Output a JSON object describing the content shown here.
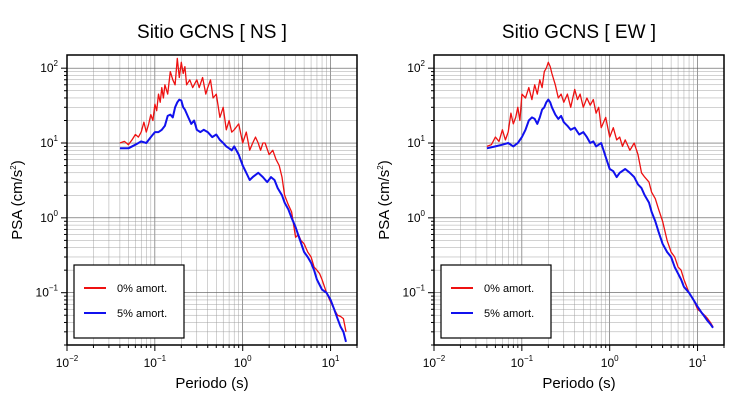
{
  "chart_data": [
    {
      "type": "line",
      "title": "Sitio GCNS [ NS ]",
      "xlabel": "Periodo (s)",
      "ylabel_main": "PSA (cm/s",
      "ylabel_sup": "2",
      "ylabel_close": ")",
      "xscale": "log",
      "yscale": "log",
      "xlim": [
        0.01,
        20
      ],
      "ylim": [
        0.02,
        150
      ],
      "xticks": [
        {
          "value": 0.01,
          "base": "10",
          "exp": "−2"
        },
        {
          "value": 0.1,
          "base": "10",
          "exp": "−1"
        },
        {
          "value": 1,
          "base": "10",
          "exp": "0"
        },
        {
          "value": 10,
          "base": "10",
          "exp": "1"
        }
      ],
      "yticks": [
        {
          "value": 0.1,
          "base": "10",
          "exp": "−1"
        },
        {
          "value": 1,
          "base": "10",
          "exp": "0"
        },
        {
          "value": 10,
          "base": "10",
          "exp": "1"
        },
        {
          "value": 100,
          "base": "10",
          "exp": "2"
        }
      ],
      "grid": true,
      "legend_position": "bottom-left",
      "series": [
        {
          "name": "0% amort.",
          "color": "#ee1111",
          "x": [
            0.04,
            0.045,
            0.05,
            0.055,
            0.06,
            0.065,
            0.07,
            0.075,
            0.08,
            0.085,
            0.09,
            0.095,
            0.1,
            0.105,
            0.11,
            0.115,
            0.12,
            0.125,
            0.13,
            0.14,
            0.15,
            0.16,
            0.17,
            0.18,
            0.19,
            0.2,
            0.21,
            0.22,
            0.23,
            0.25,
            0.27,
            0.3,
            0.32,
            0.35,
            0.38,
            0.4,
            0.43,
            0.46,
            0.5,
            0.55,
            0.6,
            0.65,
            0.7,
            0.75,
            0.8,
            0.9,
            1.0,
            1.1,
            1.2,
            1.3,
            1.4,
            1.5,
            1.6,
            1.7,
            1.8,
            2.0,
            2.2,
            2.4,
            2.6,
            2.8,
            3.0,
            3.3,
            3.6,
            4.0,
            4.3,
            4.6,
            5.0,
            5.5,
            6.0,
            6.5,
            7.0,
            7.5,
            8.0,
            9.0,
            10.0,
            11.0,
            12.0,
            13.0,
            14.0,
            15.0
          ],
          "y": [
            10,
            10.5,
            9.5,
            11,
            13,
            12,
            14,
            19,
            14,
            18,
            24,
            20,
            33,
            27,
            45,
            35,
            55,
            40,
            60,
            45,
            90,
            70,
            60,
            135,
            75,
            120,
            85,
            105,
            60,
            70,
            55,
            70,
            55,
            75,
            45,
            55,
            70,
            40,
            45,
            22,
            30,
            15,
            20,
            14,
            15,
            18,
            10,
            14,
            8,
            10,
            12,
            10,
            8,
            10,
            10,
            7,
            8,
            6,
            5,
            3.5,
            2.0,
            1.5,
            1.2,
            0.55,
            0.6,
            0.5,
            0.45,
            0.35,
            0.3,
            0.22,
            0.2,
            0.18,
            0.15,
            0.1,
            0.075,
            0.06,
            0.05,
            0.048,
            0.045,
            0.03
          ]
        },
        {
          "name": "5% amort.",
          "color": "#1111ee",
          "x": [
            0.04,
            0.05,
            0.06,
            0.07,
            0.08,
            0.09,
            0.1,
            0.11,
            0.12,
            0.13,
            0.14,
            0.15,
            0.16,
            0.17,
            0.18,
            0.19,
            0.2,
            0.21,
            0.22,
            0.24,
            0.26,
            0.28,
            0.3,
            0.33,
            0.36,
            0.4,
            0.45,
            0.5,
            0.55,
            0.6,
            0.65,
            0.7,
            0.75,
            0.8,
            0.9,
            1.0,
            1.1,
            1.2,
            1.3,
            1.5,
            1.7,
            1.9,
            2.1,
            2.3,
            2.5,
            2.8,
            3.0,
            3.3,
            3.6,
            4.0,
            4.5,
            5.0,
            5.5,
            6.0,
            6.5,
            7.0,
            8.0,
            9.0,
            10.0,
            11.0,
            12.0,
            13.0,
            14.0,
            15.0
          ],
          "y": [
            8.5,
            8.5,
            9.5,
            10.5,
            10,
            12,
            14,
            14,
            15,
            17,
            23,
            24,
            22,
            30,
            35,
            38,
            37,
            30,
            28,
            22,
            18,
            20,
            15,
            14,
            15,
            14,
            12,
            13,
            11,
            10,
            9,
            8.5,
            8,
            9,
            7,
            5,
            4.0,
            3.2,
            3.5,
            4.0,
            3.5,
            3.0,
            3.5,
            3.2,
            2.5,
            2.0,
            1.6,
            1.3,
            1.0,
            0.75,
            0.5,
            0.35,
            0.3,
            0.25,
            0.2,
            0.15,
            0.11,
            0.1,
            0.08,
            0.06,
            0.045,
            0.035,
            0.03,
            0.022
          ]
        }
      ]
    },
    {
      "type": "line",
      "title": "Sitio GCNS [ EW ]",
      "xlabel": "Periodo (s)",
      "ylabel_main": "PSA (cm/s",
      "ylabel_sup": "2",
      "ylabel_close": ")",
      "xscale": "log",
      "yscale": "log",
      "xlim": [
        0.01,
        20
      ],
      "ylim": [
        0.02,
        150
      ],
      "xticks": [
        {
          "value": 0.01,
          "base": "10",
          "exp": "−2"
        },
        {
          "value": 0.1,
          "base": "10",
          "exp": "−1"
        },
        {
          "value": 1,
          "base": "10",
          "exp": "0"
        },
        {
          "value": 10,
          "base": "10",
          "exp": "1"
        }
      ],
      "yticks": [
        {
          "value": 0.1,
          "base": "10",
          "exp": "−1"
        },
        {
          "value": 1,
          "base": "10",
          "exp": "0"
        },
        {
          "value": 10,
          "base": "10",
          "exp": "1"
        },
        {
          "value": 100,
          "base": "10",
          "exp": "2"
        }
      ],
      "grid": true,
      "legend_position": "bottom-left",
      "series": [
        {
          "name": "0% amort.",
          "color": "#ee1111",
          "x": [
            0.04,
            0.045,
            0.05,
            0.055,
            0.06,
            0.065,
            0.07,
            0.075,
            0.08,
            0.085,
            0.09,
            0.095,
            0.1,
            0.11,
            0.12,
            0.13,
            0.14,
            0.15,
            0.16,
            0.17,
            0.18,
            0.19,
            0.2,
            0.21,
            0.22,
            0.24,
            0.26,
            0.28,
            0.3,
            0.33,
            0.36,
            0.4,
            0.43,
            0.46,
            0.5,
            0.55,
            0.6,
            0.65,
            0.7,
            0.75,
            0.8,
            0.9,
            1.0,
            1.1,
            1.2,
            1.3,
            1.4,
            1.5,
            1.7,
            1.9,
            2.1,
            2.3,
            2.5,
            2.8,
            3.0,
            3.3,
            3.6,
            4.0,
            4.5,
            5.0,
            5.5,
            6.0,
            6.5,
            7.0,
            8.0,
            9.0,
            10.0,
            11.0,
            12.0,
            13.0,
            14.0,
            15.0
          ],
          "y": [
            9,
            9.5,
            12,
            10.5,
            15,
            11,
            14,
            25,
            18,
            22,
            30,
            20,
            45,
            40,
            55,
            38,
            60,
            45,
            70,
            55,
            90,
            100,
            120,
            105,
            85,
            60,
            40,
            45,
            35,
            45,
            30,
            52,
            38,
            45,
            30,
            40,
            32,
            38,
            25,
            30,
            16,
            22,
            12,
            16,
            11,
            12,
            9,
            11,
            8,
            10,
            7,
            4.0,
            3.5,
            3.0,
            2.2,
            1.8,
            1.3,
            0.9,
            0.5,
            0.35,
            0.3,
            0.22,
            0.2,
            0.15,
            0.1,
            0.08,
            0.06,
            0.055,
            0.05,
            0.045,
            0.04,
            0.035
          ]
        },
        {
          "name": "5% amort.",
          "color": "#1111ee",
          "x": [
            0.04,
            0.05,
            0.06,
            0.07,
            0.08,
            0.09,
            0.1,
            0.11,
            0.12,
            0.13,
            0.14,
            0.15,
            0.16,
            0.17,
            0.18,
            0.19,
            0.2,
            0.21,
            0.22,
            0.24,
            0.26,
            0.28,
            0.3,
            0.33,
            0.36,
            0.4,
            0.45,
            0.5,
            0.55,
            0.6,
            0.65,
            0.7,
            0.75,
            0.8,
            0.9,
            1.0,
            1.1,
            1.2,
            1.3,
            1.5,
            1.7,
            1.9,
            2.1,
            2.3,
            2.5,
            2.8,
            3.0,
            3.3,
            3.6,
            4.0,
            4.5,
            5.0,
            5.5,
            6.0,
            6.5,
            7.0,
            8.0,
            9.0,
            10.0,
            11.0,
            12.0,
            13.0,
            14.0,
            15.0
          ],
          "y": [
            8.5,
            9,
            9.5,
            10,
            9,
            10,
            12,
            15,
            20,
            22,
            21,
            18,
            22,
            28,
            30,
            35,
            38,
            35,
            30,
            24,
            21,
            23,
            19,
            17,
            15,
            16,
            13,
            14,
            12,
            10,
            10.5,
            9,
            9.5,
            10,
            6.5,
            4.5,
            4.2,
            3.5,
            4.0,
            4.5,
            4.0,
            3.5,
            2.8,
            2.5,
            2.0,
            1.6,
            1.2,
            0.9,
            0.65,
            0.45,
            0.35,
            0.3,
            0.22,
            0.18,
            0.15,
            0.12,
            0.1,
            0.08,
            0.065,
            0.055,
            0.048,
            0.042,
            0.038,
            0.034
          ]
        }
      ]
    }
  ]
}
